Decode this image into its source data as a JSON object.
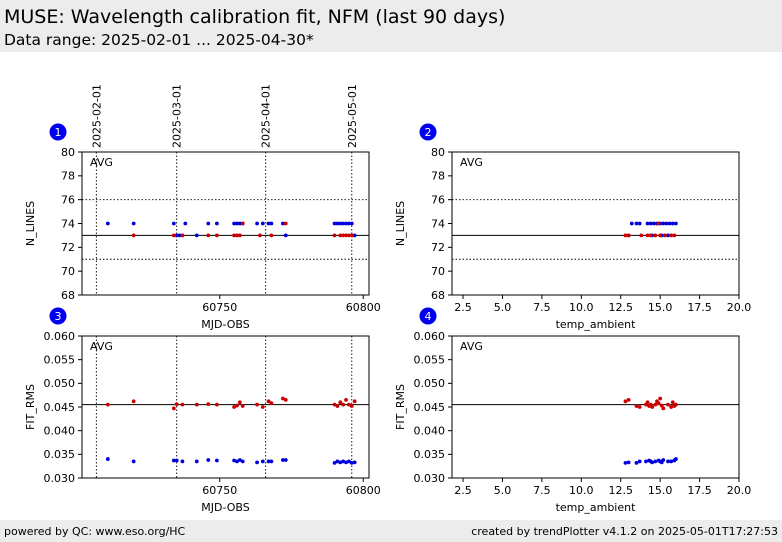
{
  "header": {
    "title": "MUSE: Wavelength calibration fit, NFM (last 90 days)",
    "subtitle": "Data range: 2025-02-01 ... 2025-04-30*"
  },
  "footer": {
    "left": "powered by QC: www.eso.org/HC",
    "right": "created by trendPlotter v4.1.2 on 2025-05-01T17:27:53"
  },
  "colors": {
    "series_a": "#0000dd",
    "series_b": "#cc0000",
    "badge": "#0000ee"
  },
  "date_markers": [
    {
      "label": "2025-02-01",
      "mjd": 60707
    },
    {
      "label": "2025-03-01",
      "mjd": 60735
    },
    {
      "label": "2025-04-01",
      "mjd": 60766
    },
    {
      "label": "2025-05-01",
      "mjd": 60796
    }
  ],
  "chart_data": [
    {
      "panel": "1",
      "type": "scatter",
      "avg_label": "AVG",
      "xlabel": "MJD-OBS",
      "ylabel": "N_LINES",
      "xlim": [
        60702,
        60802
      ],
      "ylim": [
        68,
        80
      ],
      "xticks": [
        60750,
        60800
      ],
      "yticks": [
        68,
        70,
        72,
        74,
        76,
        78,
        80
      ],
      "ytick_labels": [
        "68",
        "70",
        "72",
        "74",
        "76",
        "78",
        "80"
      ],
      "hlines": [
        {
          "y": 73,
          "style": "solid"
        },
        {
          "y": 76,
          "style": "dotted"
        },
        {
          "y": 71,
          "style": "dotted"
        }
      ],
      "series": [
        {
          "color": "#0000dd",
          "points": [
            [
              60711,
              74
            ],
            [
              60720,
              74
            ],
            [
              60734,
              74
            ],
            [
              60735,
              73
            ],
            [
              60736,
              73
            ],
            [
              60738,
              74
            ],
            [
              60742,
              73
            ],
            [
              60746,
              74
            ],
            [
              60749,
              74
            ],
            [
              60755,
              74
            ],
            [
              60756,
              74
            ],
            [
              60757,
              74
            ],
            [
              60758,
              74
            ],
            [
              60763,
              74
            ],
            [
              60765,
              74
            ],
            [
              60767,
              74
            ],
            [
              60768,
              74
            ],
            [
              60772,
              74
            ],
            [
              60773,
              73
            ],
            [
              60790,
              74
            ],
            [
              60791,
              74
            ],
            [
              60792,
              74
            ],
            [
              60793,
              74
            ],
            [
              60794,
              74
            ],
            [
              60795,
              74
            ],
            [
              60796,
              74
            ],
            [
              60797,
              73
            ]
          ]
        },
        {
          "color": "#cc0000",
          "points": [
            [
              60720,
              73
            ],
            [
              60734,
              73
            ],
            [
              60737,
              73
            ],
            [
              60746,
              73
            ],
            [
              60749,
              73
            ],
            [
              60755,
              73
            ],
            [
              60756,
              73
            ],
            [
              60757,
              73
            ],
            [
              60758,
              74
            ],
            [
              60764,
              73
            ],
            [
              60768,
              73
            ],
            [
              60773,
              74
            ],
            [
              60790,
              73
            ],
            [
              60792,
              73
            ],
            [
              60793,
              73
            ],
            [
              60794,
              73
            ],
            [
              60795,
              73
            ],
            [
              60796,
              73
            ]
          ]
        }
      ]
    },
    {
      "panel": "2",
      "type": "scatter",
      "avg_label": "AVG",
      "xlabel": "temp_ambient",
      "ylabel": "N_LINES",
      "xlim": [
        1.8,
        20
      ],
      "ylim": [
        68,
        80
      ],
      "xticks": [
        2.5,
        5.0,
        7.5,
        10.0,
        12.5,
        15.0,
        17.5,
        20.0
      ],
      "xtick_labels": [
        "2.5",
        "5.0",
        "7.5",
        "10.0",
        "12.5",
        "15.0",
        "17.5",
        "20.0"
      ],
      "yticks": [
        68,
        70,
        72,
        74,
        76,
        78,
        80
      ],
      "ytick_labels": [
        "68",
        "70",
        "72",
        "74",
        "76",
        "78",
        "80"
      ],
      "hlines": [
        {
          "y": 73,
          "style": "solid"
        },
        {
          "y": 76,
          "style": "dotted"
        },
        {
          "y": 71,
          "style": "dotted"
        }
      ],
      "series": [
        {
          "color": "#0000dd",
          "points": [
            [
              13.0,
              73
            ],
            [
              13.2,
              74
            ],
            [
              13.5,
              74
            ],
            [
              13.7,
              74
            ],
            [
              14.2,
              74
            ],
            [
              14.4,
              74
            ],
            [
              14.6,
              74
            ],
            [
              14.8,
              74
            ],
            [
              15.0,
              74
            ],
            [
              15.2,
              74
            ],
            [
              15.4,
              74
            ],
            [
              15.6,
              74
            ],
            [
              15.8,
              74
            ],
            [
              16.0,
              74
            ],
            [
              14.5,
              73
            ],
            [
              15.1,
              73
            ],
            [
              15.5,
              73
            ]
          ]
        },
        {
          "color": "#cc0000",
          "points": [
            [
              12.8,
              73
            ],
            [
              13.0,
              73
            ],
            [
              13.8,
              73
            ],
            [
              14.2,
              73
            ],
            [
              14.4,
              73
            ],
            [
              14.7,
              73
            ],
            [
              15.0,
              73
            ],
            [
              15.3,
              73
            ],
            [
              15.7,
              73
            ],
            [
              15.9,
              73
            ],
            [
              14.9,
              74
            ]
          ]
        }
      ]
    },
    {
      "panel": "3",
      "type": "scatter",
      "avg_label": "AVG",
      "xlabel": "MJD-OBS",
      "ylabel": "FIT_RMS",
      "xlim": [
        60702,
        60802
      ],
      "ylim": [
        0.03,
        0.06
      ],
      "xticks": [
        60750,
        60800
      ],
      "yticks": [
        0.03,
        0.035,
        0.04,
        0.045,
        0.05,
        0.055,
        0.06
      ],
      "ytick_labels": [
        "0.030",
        "0.035",
        "0.040",
        "0.045",
        "0.050",
        "0.055",
        "0.060"
      ],
      "hlines": [
        {
          "y": 0.0455,
          "style": "solid"
        }
      ],
      "series": [
        {
          "color": "#0000dd",
          "points": [
            [
              60711,
              0.034
            ],
            [
              60720,
              0.0335
            ],
            [
              60734,
              0.0337
            ],
            [
              60735,
              0.0337
            ],
            [
              60737,
              0.0335
            ],
            [
              60742,
              0.0335
            ],
            [
              60746,
              0.0338
            ],
            [
              60749,
              0.0337
            ],
            [
              60755,
              0.0337
            ],
            [
              60756,
              0.0335
            ],
            [
              60757,
              0.0338
            ],
            [
              60758,
              0.0335
            ],
            [
              60763,
              0.0333
            ],
            [
              60765,
              0.0335
            ],
            [
              60767,
              0.0335
            ],
            [
              60768,
              0.0335
            ],
            [
              60772,
              0.0338
            ],
            [
              60773,
              0.0338
            ],
            [
              60790,
              0.0332
            ],
            [
              60791,
              0.0335
            ],
            [
              60792,
              0.0333
            ],
            [
              60793,
              0.0335
            ],
            [
              60794,
              0.0333
            ],
            [
              60795,
              0.0335
            ],
            [
              60796,
              0.0332
            ],
            [
              60797,
              0.0333
            ]
          ]
        },
        {
          "color": "#cc0000",
          "points": [
            [
              60711,
              0.0455
            ],
            [
              60720,
              0.0462
            ],
            [
              60734,
              0.0447
            ],
            [
              60735,
              0.0456
            ],
            [
              60737,
              0.0455
            ],
            [
              60742,
              0.0455
            ],
            [
              60746,
              0.0456
            ],
            [
              60749,
              0.0455
            ],
            [
              60755,
              0.045
            ],
            [
              60756,
              0.0453
            ],
            [
              60757,
              0.046
            ],
            [
              60758,
              0.0452
            ],
            [
              60763,
              0.0455
            ],
            [
              60765,
              0.045
            ],
            [
              60767,
              0.0462
            ],
            [
              60768,
              0.0458
            ],
            [
              60772,
              0.0468
            ],
            [
              60773,
              0.0465
            ],
            [
              60790,
              0.0455
            ],
            [
              60791,
              0.0452
            ],
            [
              60792,
              0.046
            ],
            [
              60793,
              0.0455
            ],
            [
              60794,
              0.0465
            ],
            [
              60795,
              0.0455
            ],
            [
              60796,
              0.0452
            ],
            [
              60797,
              0.0462
            ]
          ]
        }
      ]
    },
    {
      "panel": "4",
      "type": "scatter",
      "avg_label": "AVG",
      "xlabel": "temp_ambient",
      "ylabel": "FIT_RMS",
      "xlim": [
        1.8,
        20
      ],
      "ylim": [
        0.03,
        0.06
      ],
      "xticks": [
        2.5,
        5.0,
        7.5,
        10.0,
        12.5,
        15.0,
        17.5,
        20.0
      ],
      "xtick_labels": [
        "2.5",
        "5.0",
        "7.5",
        "10.0",
        "12.5",
        "15.0",
        "17.5",
        "20.0"
      ],
      "yticks": [
        0.03,
        0.035,
        0.04,
        0.045,
        0.05,
        0.055,
        0.06
      ],
      "ytick_labels": [
        "0.030",
        "0.035",
        "0.040",
        "0.045",
        "0.050",
        "0.055",
        "0.060"
      ],
      "hlines": [
        {
          "y": 0.0455,
          "style": "solid"
        }
      ],
      "series": [
        {
          "color": "#0000dd",
          "points": [
            [
              12.8,
              0.0332
            ],
            [
              13.0,
              0.0333
            ],
            [
              13.5,
              0.0332
            ],
            [
              13.7,
              0.0335
            ],
            [
              14.1,
              0.0335
            ],
            [
              14.3,
              0.0337
            ],
            [
              14.5,
              0.0333
            ],
            [
              14.7,
              0.0335
            ],
            [
              14.9,
              0.0337
            ],
            [
              15.0,
              0.0335
            ],
            [
              15.2,
              0.0338
            ],
            [
              15.5,
              0.0335
            ],
            [
              15.7,
              0.0335
            ],
            [
              15.9,
              0.0337
            ],
            [
              16.0,
              0.034
            ],
            [
              14.4,
              0.0335
            ],
            [
              15.1,
              0.0333
            ]
          ]
        },
        {
          "color": "#cc0000",
          "points": [
            [
              12.8,
              0.0462
            ],
            [
              13.0,
              0.0465
            ],
            [
              13.5,
              0.0452
            ],
            [
              13.7,
              0.045
            ],
            [
              14.1,
              0.0455
            ],
            [
              14.2,
              0.046
            ],
            [
              14.4,
              0.0455
            ],
            [
              14.5,
              0.045
            ],
            [
              14.7,
              0.0455
            ],
            [
              14.8,
              0.0462
            ],
            [
              15.0,
              0.0468
            ],
            [
              15.1,
              0.0453
            ],
            [
              15.2,
              0.0447
            ],
            [
              15.5,
              0.0455
            ],
            [
              15.7,
              0.045
            ],
            [
              15.8,
              0.046
            ],
            [
              16.0,
              0.0455
            ],
            [
              15.9,
              0.0452
            ],
            [
              14.9,
              0.0458
            ],
            [
              14.3,
              0.0452
            ]
          ]
        }
      ]
    }
  ]
}
